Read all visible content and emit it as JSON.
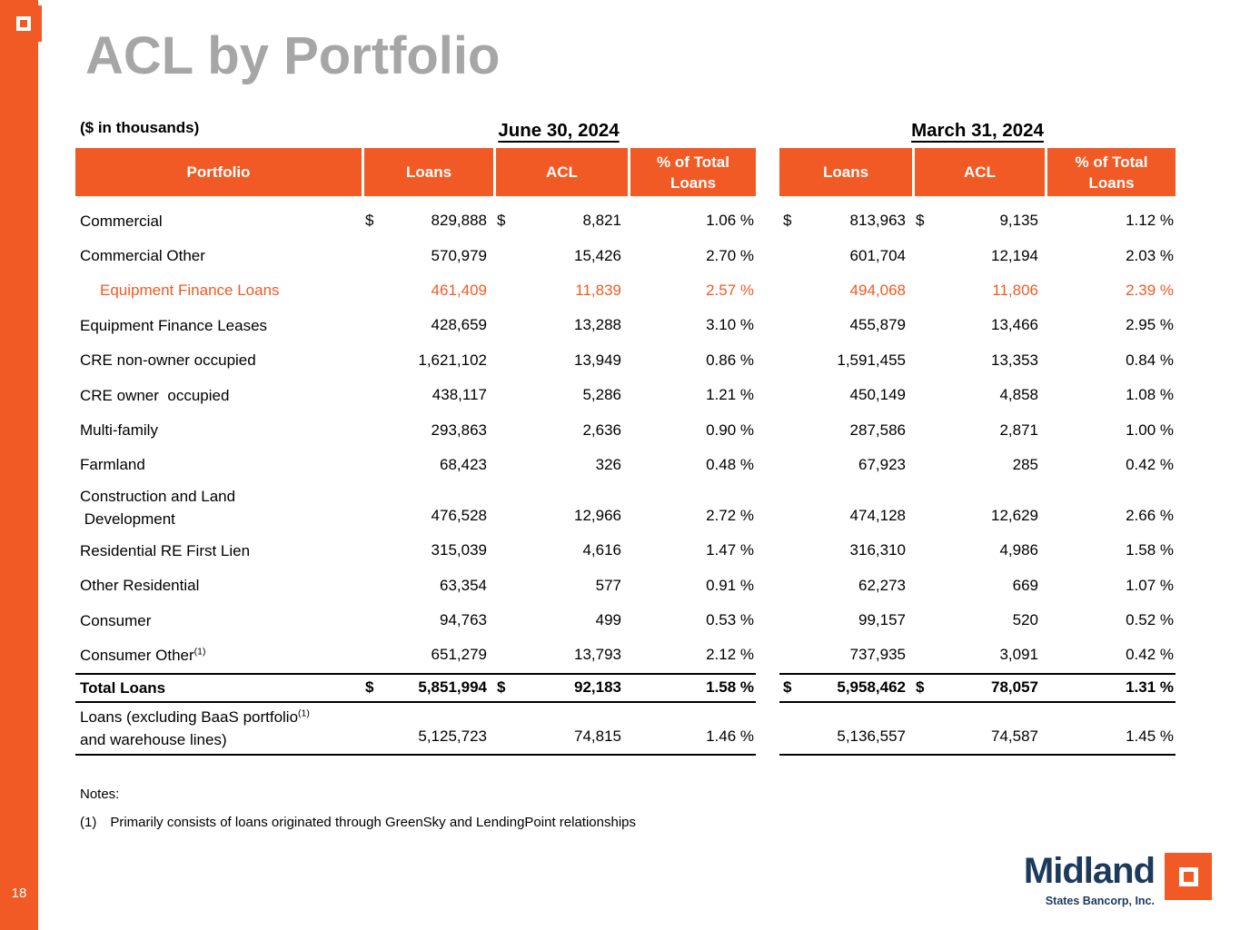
{
  "colors": {
    "accent_orange": "#F15A24",
    "brand_navy": "#1B3A5C",
    "title_gray": "#A6A6A6"
  },
  "slide": {
    "title": "ACL by Portfolio",
    "units_label": "($ in thousands)",
    "page_number": "18",
    "notes_heading": "Notes:",
    "note_marker": "(1)",
    "note_text": "Primarily consists of loans originated through GreenSky and LendingPoint relationships"
  },
  "logo": {
    "brand_name": "Midland",
    "brand_subtitle": "States Bancorp, Inc."
  },
  "table": {
    "period_1": "June 30, 2024",
    "period_2": "March 31, 2024",
    "col_portfolio": "Portfolio",
    "col_loans": "Loans",
    "col_acl": "ACL",
    "col_pct": "% of Total Loans",
    "rows": [
      {
        "label": "Commercial",
        "dollars": "$",
        "j_loans": "829,888",
        "j_acl": "8,821",
        "j_pct": "1.06 %",
        "m_loans": "813,963",
        "m_acl": "9,135",
        "m_pct": "1.12 %"
      },
      {
        "label": "Commercial Other",
        "j_loans": "570,979",
        "j_acl": "15,426",
        "j_pct": "2.70 %",
        "m_loans": "601,704",
        "m_acl": "12,194",
        "m_pct": "2.03 %"
      },
      {
        "label": "Equipment Finance Loans",
        "orange": true,
        "indent": true,
        "j_loans": "461,409",
        "j_acl": "11,839",
        "j_pct": "2.57 %",
        "m_loans": "494,068",
        "m_acl": "11,806",
        "m_pct": "2.39 %"
      },
      {
        "label": "Equipment Finance Leases",
        "j_loans": "428,659",
        "j_acl": "13,288",
        "j_pct": "3.10 %",
        "m_loans": "455,879",
        "m_acl": "13,466",
        "m_pct": "2.95 %"
      },
      {
        "label": "CRE non-owner occupied",
        "j_loans": "1,621,102",
        "j_acl": "13,949",
        "j_pct": "0.86 %",
        "m_loans": "1,591,455",
        "m_acl": "13,353",
        "m_pct": "0.84 %"
      },
      {
        "label": "CRE owner  occupied",
        "j_loans": "438,117",
        "j_acl": "5,286",
        "j_pct": "1.21 %",
        "m_loans": "450,149",
        "m_acl": "4,858",
        "m_pct": "1.08 %"
      },
      {
        "label": "Multi-family",
        "j_loans": "293,863",
        "j_acl": "2,636",
        "j_pct": "0.90 %",
        "m_loans": "287,586",
        "m_acl": "2,871",
        "m_pct": "1.00 %"
      },
      {
        "label": "Farmland",
        "j_loans": "68,423",
        "j_acl": "326",
        "j_pct": "0.48 %",
        "m_loans": "67,923",
        "m_acl": "285",
        "m_pct": "0.42 %"
      },
      {
        "label": "Construction and Land",
        "label2": " Development",
        "tall": true,
        "j_loans": "476,528",
        "j_acl": "12,966",
        "j_pct": "2.72 %",
        "m_loans": "474,128",
        "m_acl": "12,629",
        "m_pct": "2.66 %"
      },
      {
        "label": "Residential RE First Lien",
        "j_loans": "315,039",
        "j_acl": "4,616",
        "j_pct": "1.47 %",
        "m_loans": "316,310",
        "m_acl": "4,986",
        "m_pct": "1.58 %"
      },
      {
        "label": "Other Residential",
        "j_loans": "63,354",
        "j_acl": "577",
        "j_pct": "0.91 %",
        "m_loans": "62,273",
        "m_acl": "669",
        "m_pct": "1.07 %"
      },
      {
        "label": "Consumer",
        "j_loans": "94,763",
        "j_acl": "499",
        "j_pct": "0.53 %",
        "m_loans": "99,157",
        "m_acl": "520",
        "m_pct": "0.52 %"
      },
      {
        "label": "Consumer Other",
        "sup": "(1)",
        "j_loans": "651,279",
        "j_acl": "13,793",
        "j_pct": "2.12 %",
        "m_loans": "737,935",
        "m_acl": "3,091",
        "m_pct": "0.42 %"
      },
      {
        "label": "Total Loans",
        "bold": true,
        "total": true,
        "rule_top": true,
        "rule_bottom": true,
        "dollars": "$",
        "j_loans": "5,851,994",
        "j_acl": "92,183",
        "j_pct": "1.58 %",
        "m_loans": "5,958,462",
        "m_acl": "78,057",
        "m_pct": "1.31 %"
      },
      {
        "label": "Loans (excluding BaaS portfolio",
        "sup": "(1)",
        "label2": "and warehouse lines)",
        "tall": true,
        "rule_bottom": true,
        "j_loans": "5,125,723",
        "j_acl": "74,815",
        "j_pct": "1.46 %",
        "m_loans": "5,136,557",
        "m_acl": "74,587",
        "m_pct": "1.45 %"
      }
    ]
  }
}
